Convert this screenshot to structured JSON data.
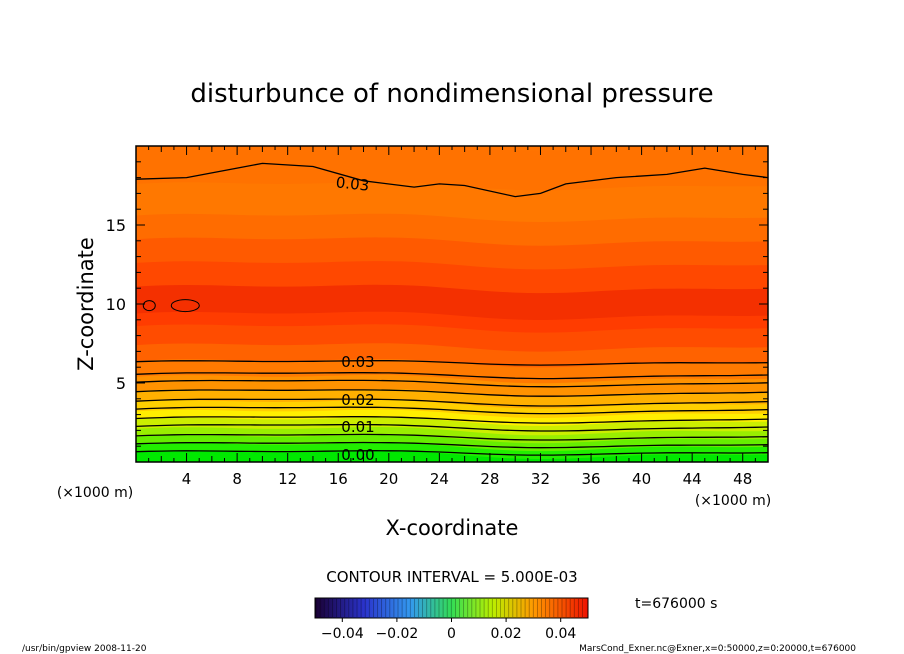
{
  "chart_data": {
    "type": "heatmap",
    "title": "disturbunce of nondimensional pressure",
    "xlabel": "X-coordinate",
    "ylabel": "Z-coordinate",
    "x_unit": "(×1000 m)",
    "z_unit": "(×1000 m)",
    "xlim": [
      0,
      50
    ],
    "ylim": [
      0,
      20
    ],
    "x_ticks": [
      "4",
      "8",
      "12",
      "16",
      "20",
      "24",
      "28",
      "32",
      "36",
      "40",
      "44",
      "48"
    ],
    "x_tick_values": [
      4,
      8,
      12,
      16,
      20,
      24,
      28,
      32,
      36,
      40,
      44,
      48
    ],
    "y_ticks": [
      "5",
      "10",
      "15"
    ],
    "y_tick_values": [
      5,
      10,
      15
    ],
    "contour_labels": [
      "0.03",
      "0.03",
      "0.02",
      "0.01",
      "0.00"
    ],
    "contour_interval_text": "CONTOUR INTERVAL = 5.000E-03",
    "time_text": "t=676000 s",
    "colorbar": {
      "range": [
        -0.05,
        0.05
      ],
      "tick_labels": [
        "−0.04",
        "−0.02",
        "0",
        "0.02",
        "0.04"
      ],
      "tick_values": [
        -0.04,
        -0.02,
        0,
        0.02,
        0.04
      ]
    },
    "profile_note": "value increases from ~0.00 at z=0 to a maximum (~0.04) near z=10, then decreases to ~0.03 at z=18",
    "colors": {
      "low": "#00ee00",
      "mid": "#ffd800",
      "high": "#ee3300"
    }
  },
  "footer": {
    "left": "/usr/bin/gpview   2008-11-20",
    "right": "MarsCond_Exner.nc@Exner,x=0:50000,z=0:20000,t=676000"
  }
}
